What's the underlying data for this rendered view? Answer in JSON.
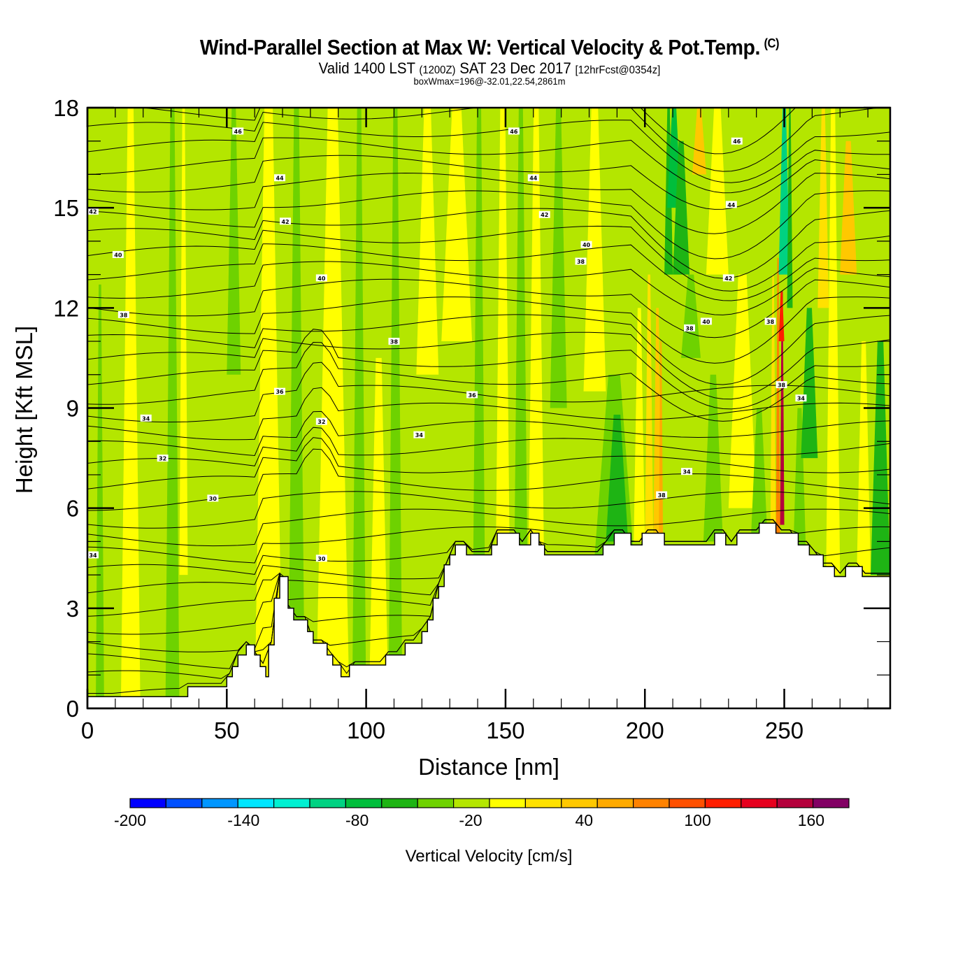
{
  "header": {
    "title": "Wind-Parallel Section at Max W: Vertical Velocity & Pot.Temp.",
    "copyright": "(C)",
    "valid_prefix": "Valid 1400 LST",
    "valid_utc": "(1200Z)",
    "valid_date": "SAT 23 Dec 2017",
    "forecast": "[12hrFcst@0354z]",
    "box_info": "boxWmax=196@-32.01,22.54,2861m"
  },
  "chart_data": {
    "type": "heatmap",
    "title": "Wind-Parallel Section at Max W: Vertical Velocity & Pot.Temp.",
    "xlabel": "Distance [nm]",
    "ylabel": "Height [Kft MSL]",
    "xlim": [
      0,
      288
    ],
    "ylim": [
      0,
      18
    ],
    "x_major_ticks": [
      0,
      50,
      100,
      150,
      200,
      250
    ],
    "x_tick_labels": [
      "0",
      "50",
      "100",
      "150",
      "200",
      "250"
    ],
    "x_minor_step": 10,
    "y_major_ticks": [
      0,
      3,
      6,
      9,
      12,
      15,
      18
    ],
    "y_tick_labels": [
      "0",
      "3",
      "6",
      "9",
      "12",
      "15",
      "18"
    ],
    "y_minor_step": 1,
    "colorbar": {
      "title": "Vertical Velocity [cm/s]",
      "bounds": [
        -200,
        180
      ],
      "step": 20,
      "tick_values": [
        -200,
        -140,
        -80,
        -20,
        40,
        100,
        160
      ],
      "tick_labels": [
        "-200",
        "-140",
        "-80",
        "-20",
        "40",
        "100",
        "160"
      ],
      "colors": [
        "#0000ff",
        "#0050ff",
        "#0096ff",
        "#00e6ff",
        "#00f0d2",
        "#00d282",
        "#00be3c",
        "#1eb414",
        "#6ed200",
        "#b4e600",
        "#ffff00",
        "#ffe100",
        "#ffc800",
        "#ffaa00",
        "#ff8200",
        "#ff5000",
        "#ff1e00",
        "#e6001e",
        "#b4003c",
        "#820064"
      ]
    },
    "terrain_kft": [
      [
        0,
        0.35
      ],
      [
        36,
        0.35
      ],
      [
        36,
        0.65
      ],
      [
        50,
        0.65
      ],
      [
        50,
        0.95
      ],
      [
        52,
        0.95
      ],
      [
        52,
        1.25
      ],
      [
        54,
        1.25
      ],
      [
        54,
        1.6
      ],
      [
        57,
        1.6
      ],
      [
        57,
        1.9
      ],
      [
        60,
        1.9
      ],
      [
        60,
        1.6
      ],
      [
        62,
        1.6
      ],
      [
        62,
        1.25
      ],
      [
        64,
        1.25
      ],
      [
        64,
        0.95
      ],
      [
        65,
        0.95
      ],
      [
        65,
        1.9
      ],
      [
        67,
        1.9
      ],
      [
        67,
        3.3
      ],
      [
        69,
        3.3
      ],
      [
        69,
        3.95
      ],
      [
        72,
        3.95
      ],
      [
        72,
        3.0
      ],
      [
        74,
        3.0
      ],
      [
        74,
        2.65
      ],
      [
        79,
        2.65
      ],
      [
        79,
        2.3
      ],
      [
        81,
        2.3
      ],
      [
        81,
        1.95
      ],
      [
        86,
        1.95
      ],
      [
        86,
        1.6
      ],
      [
        88,
        1.6
      ],
      [
        88,
        1.3
      ],
      [
        91,
        1.3
      ],
      [
        91,
        0.95
      ],
      [
        94,
        0.95
      ],
      [
        94,
        1.3
      ],
      [
        107,
        1.3
      ],
      [
        107,
        1.6
      ],
      [
        114,
        1.6
      ],
      [
        114,
        1.95
      ],
      [
        120,
        1.95
      ],
      [
        120,
        2.3
      ],
      [
        122,
        2.3
      ],
      [
        122,
        2.65
      ],
      [
        124,
        2.65
      ],
      [
        124,
        3.3
      ],
      [
        126,
        3.3
      ],
      [
        126,
        3.65
      ],
      [
        128,
        3.65
      ],
      [
        128,
        4.3
      ],
      [
        130,
        4.3
      ],
      [
        130,
        4.6
      ],
      [
        132,
        4.6
      ],
      [
        132,
        4.9
      ],
      [
        136,
        4.9
      ],
      [
        136,
        4.6
      ],
      [
        145,
        4.6
      ],
      [
        145,
        4.9
      ],
      [
        147,
        4.9
      ],
      [
        147,
        5.25
      ],
      [
        155,
        5.25
      ],
      [
        155,
        4.9
      ],
      [
        159,
        4.9
      ],
      [
        159,
        5.25
      ],
      [
        162,
        5.25
      ],
      [
        162,
        4.9
      ],
      [
        164,
        4.9
      ],
      [
        164,
        4.6
      ],
      [
        185,
        4.6
      ],
      [
        185,
        4.9
      ],
      [
        189,
        4.9
      ],
      [
        189,
        5.25
      ],
      [
        195,
        5.25
      ],
      [
        195,
        4.9
      ],
      [
        199,
        4.9
      ],
      [
        199,
        5.25
      ],
      [
        207,
        5.25
      ],
      [
        207,
        4.9
      ],
      [
        225,
        4.9
      ],
      [
        225,
        5.25
      ],
      [
        229,
        5.25
      ],
      [
        229,
        4.9
      ],
      [
        233,
        4.9
      ],
      [
        233,
        5.25
      ],
      [
        241,
        5.25
      ],
      [
        241,
        5.55
      ],
      [
        247,
        5.55
      ],
      [
        247,
        5.25
      ],
      [
        255,
        5.25
      ],
      [
        255,
        4.9
      ],
      [
        259,
        4.9
      ],
      [
        259,
        4.6
      ],
      [
        264,
        4.6
      ],
      [
        264,
        4.25
      ],
      [
        268,
        4.25
      ],
      [
        268,
        3.95
      ],
      [
        272,
        3.95
      ],
      [
        272,
        4.25
      ],
      [
        278,
        4.25
      ],
      [
        278,
        3.95
      ],
      [
        288,
        3.95
      ]
    ],
    "theta_contour_interval": 1,
    "theta_labels": [
      {
        "value": "46",
        "x": 54,
        "y": 17.3
      },
      {
        "value": "46",
        "x": 153,
        "y": 17.3
      },
      {
        "value": "46",
        "x": 233,
        "y": 17.0
      },
      {
        "value": "44",
        "x": 69,
        "y": 15.9
      },
      {
        "value": "44",
        "x": 160,
        "y": 15.9
      },
      {
        "value": "44",
        "x": 231,
        "y": 15.1
      },
      {
        "value": "42",
        "x": 2,
        "y": 14.9
      },
      {
        "value": "42",
        "x": 71,
        "y": 14.6
      },
      {
        "value": "42",
        "x": 164,
        "y": 14.8
      },
      {
        "value": "42",
        "x": 230,
        "y": 12.9
      },
      {
        "value": "40",
        "x": 11,
        "y": 13.6
      },
      {
        "value": "40",
        "x": 84,
        "y": 12.9
      },
      {
        "value": "40",
        "x": 179,
        "y": 13.9
      },
      {
        "value": "40",
        "x": 222,
        "y": 11.6
      },
      {
        "value": "38",
        "x": 13,
        "y": 11.8
      },
      {
        "value": "38",
        "x": 177,
        "y": 13.4
      },
      {
        "value": "38",
        "x": 110,
        "y": 11.0
      },
      {
        "value": "38",
        "x": 216,
        "y": 11.4
      },
      {
        "value": "38",
        "x": 206,
        "y": 6.4
      },
      {
        "value": "38",
        "x": 245,
        "y": 11.6
      },
      {
        "value": "38",
        "x": 249,
        "y": 9.7
      },
      {
        "value": "36",
        "x": 69,
        "y": 9.5
      },
      {
        "value": "36",
        "x": 138,
        "y": 9.4
      },
      {
        "value": "34",
        "x": 21,
        "y": 8.7
      },
      {
        "value": "34",
        "x": 119,
        "y": 8.2
      },
      {
        "value": "34",
        "x": 215,
        "y": 7.1
      },
      {
        "value": "34",
        "x": 256,
        "y": 9.3
      },
      {
        "value": "34",
        "x": 2,
        "y": 4.6
      },
      {
        "value": "32",
        "x": 84,
        "y": 8.6
      },
      {
        "value": "32",
        "x": 27,
        "y": 7.5
      },
      {
        "value": "30",
        "x": 45,
        "y": 6.3
      },
      {
        "value": "30",
        "x": 84,
        "y": 4.5
      }
    ],
    "max_w_cm_s": 196
  }
}
